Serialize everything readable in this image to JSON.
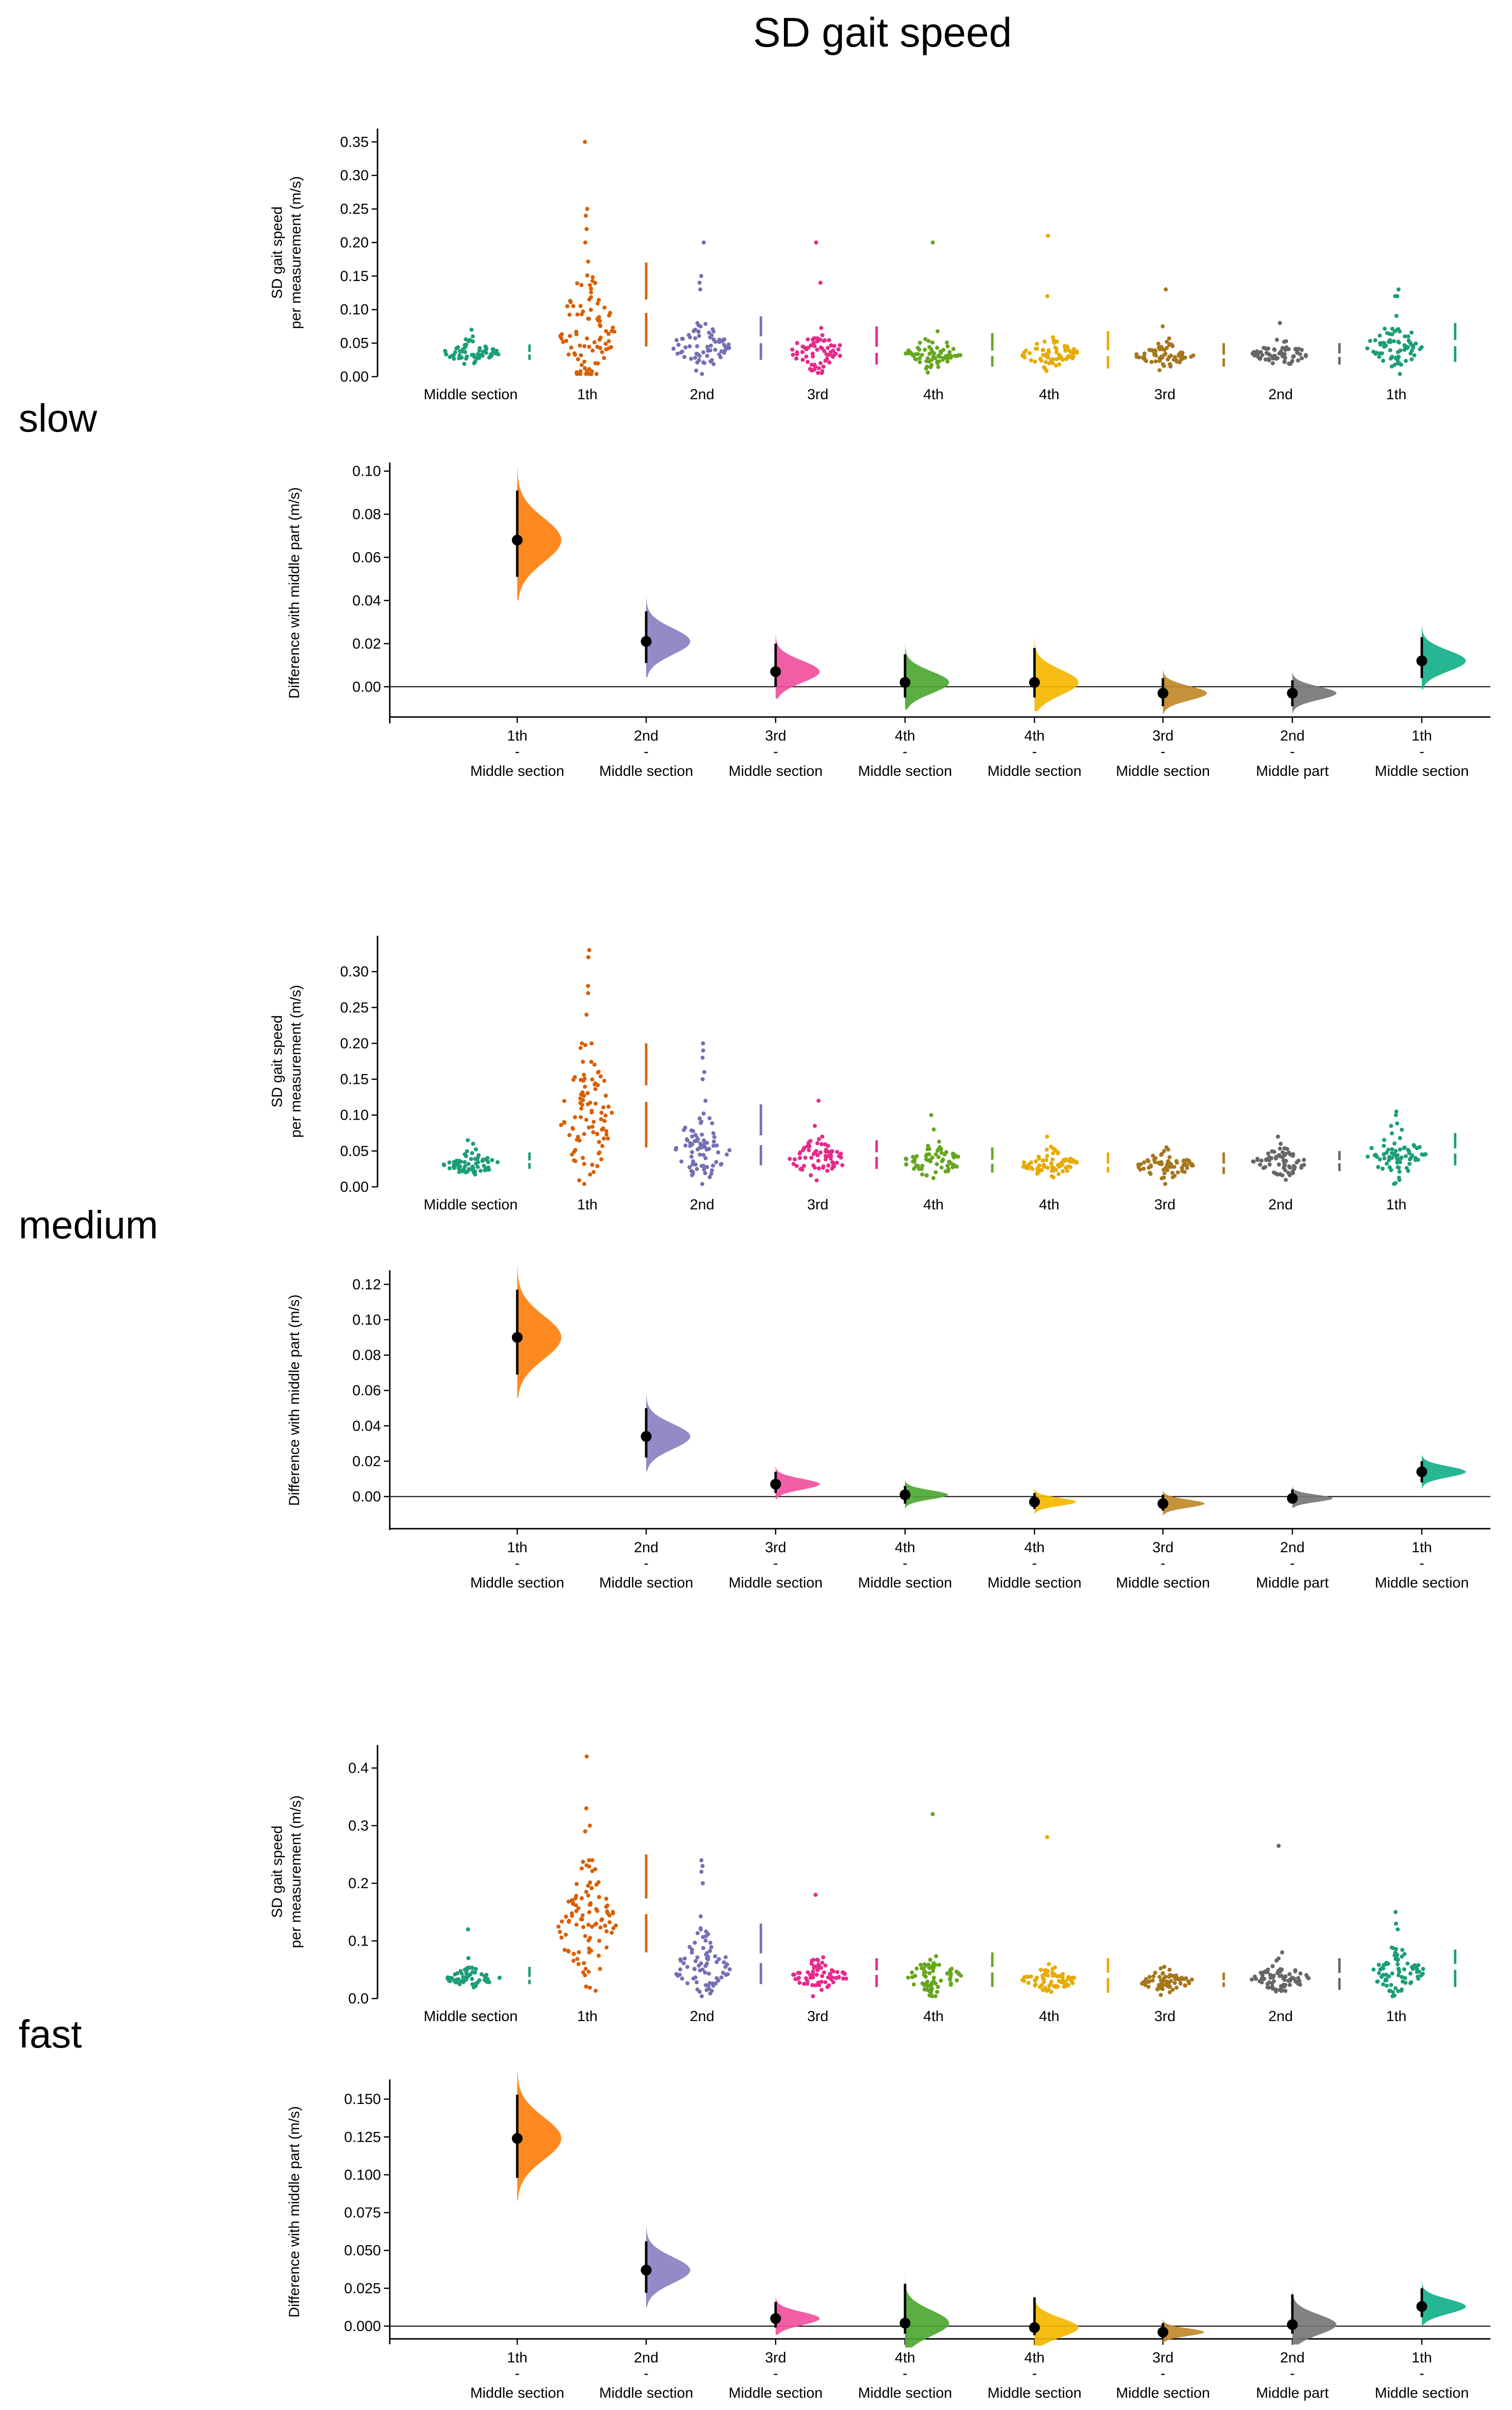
{
  "title": "SD gait speed",
  "colors": {
    "middle": "#1b9e77",
    "c1": "#d95f02",
    "c2": "#7570b3",
    "c3": "#e7298a",
    "c4": "#66a61e",
    "c4b": "#e6ab02",
    "c3b": "#a6761d",
    "c2b": "#666666",
    "c1b": "#1b9e77",
    "delta_colors": [
      "#ff7f0e",
      "#8c7fc1",
      "#f0509e",
      "#4da832",
      "#f5b800",
      "#c0882a",
      "#777777",
      "#14b08a"
    ]
  },
  "chart_data": [
    {
      "type": "scatter",
      "panel": "slow-raw",
      "group_label": "slow",
      "ylabel_line1": "SD gait speed",
      "ylabel_line2": "per measurement (m/s)",
      "ylim": [
        0,
        0.37
      ],
      "yticks": [
        "0.00",
        "0.05",
        "0.10",
        "0.15",
        "0.20",
        "0.25",
        "0.30",
        "0.35"
      ],
      "categories": [
        "Middle section",
        "1th",
        "2nd",
        "3rd",
        "4th",
        "4th",
        "3rd",
        "2nd",
        "1th"
      ],
      "series": [
        {
          "center": 0.035,
          "spread": 0.008,
          "count": 60,
          "max": 0.08,
          "outliers": [
            0.06,
            0.07
          ],
          "bar": [
            0.025,
            0.035,
            0.048
          ]
        },
        {
          "center": 0.07,
          "spread": 0.045,
          "count": 90,
          "max": 0.18,
          "outliers": [
            0.35,
            0.25,
            0.24,
            0.22,
            0.2
          ],
          "bar": [
            0.045,
            0.105,
            0.17
          ]
        },
        {
          "center": 0.045,
          "spread": 0.018,
          "count": 70,
          "max": 0.1,
          "outliers": [
            0.2,
            0.15,
            0.14,
            0.13
          ],
          "bar": [
            0.025,
            0.055,
            0.09
          ]
        },
        {
          "center": 0.038,
          "spread": 0.014,
          "count": 65,
          "max": 0.08,
          "outliers": [
            0.2,
            0.14
          ],
          "bar": [
            0.018,
            0.04,
            0.075
          ]
        },
        {
          "center": 0.035,
          "spread": 0.012,
          "count": 65,
          "max": 0.075,
          "outliers": [
            0.2
          ],
          "bar": [
            0.015,
            0.035,
            0.065
          ]
        },
        {
          "center": 0.035,
          "spread": 0.011,
          "count": 70,
          "max": 0.065,
          "outliers": [
            0.21,
            0.12
          ],
          "bar": [
            0.012,
            0.035,
            0.068
          ]
        },
        {
          "center": 0.032,
          "spread": 0.009,
          "count": 65,
          "max": 0.06,
          "outliers": [
            0.13,
            0.075
          ],
          "bar": [
            0.015,
            0.03,
            0.05
          ]
        },
        {
          "center": 0.033,
          "spread": 0.009,
          "count": 65,
          "max": 0.06,
          "outliers": [
            0.08
          ],
          "bar": [
            0.018,
            0.032,
            0.05
          ]
        },
        {
          "center": 0.045,
          "spread": 0.018,
          "count": 70,
          "max": 0.1,
          "outliers": [
            0.13,
            0.12,
            0.12
          ],
          "bar": [
            0.022,
            0.05,
            0.08
          ]
        }
      ]
    },
    {
      "type": "scatter",
      "panel": "slow-delta",
      "ylabel": "Difference with middle part (m/s)",
      "ylim": [
        -0.017,
        0.104
      ],
      "yticks": [
        "0.00",
        "0.02",
        "0.04",
        "0.06",
        "0.08",
        "0.10"
      ],
      "ytick_values": [
        0,
        0.02,
        0.04,
        0.06,
        0.08,
        0.1
      ],
      "x_top": [
        "1th",
        "2nd",
        "3rd",
        "4th",
        "4th",
        "3rd",
        "2nd",
        "1th"
      ],
      "x_sep": [
        "-",
        "-",
        "-",
        "-",
        "-",
        "-",
        "-",
        "-"
      ],
      "x_bottom": [
        "Middle section",
        "Middle section",
        "Middle section",
        "Middle section",
        "Middle section",
        "Middle section",
        "Middle part",
        "Middle section"
      ],
      "means": [
        0.068,
        0.021,
        0.007,
        0.002,
        0.002,
        -0.003,
        -0.003,
        0.012
      ],
      "ci_low": [
        0.051,
        0.011,
        0.0,
        -0.005,
        -0.005,
        -0.009,
        -0.009,
        0.004
      ],
      "ci_high": [
        0.091,
        0.035,
        0.02,
        0.015,
        0.018,
        0.004,
        0.003,
        0.023
      ]
    },
    {
      "type": "scatter",
      "panel": "medium-raw",
      "group_label": "medium",
      "ylabel_line1": "SD gait speed",
      "ylabel_line2": "per measurement (m/s)",
      "ylim": [
        0,
        0.35
      ],
      "yticks": [
        "0.00",
        "0.05",
        "0.10",
        "0.15",
        "0.20",
        "0.25",
        "0.30"
      ],
      "categories": [
        "Middle section",
        "1th",
        "2nd",
        "3rd",
        "4th",
        "4th",
        "3rd",
        "2nd",
        "1th"
      ],
      "series": [
        {
          "center": 0.032,
          "spread": 0.008,
          "count": 60,
          "max": 0.07,
          "outliers": [
            0.065,
            0.06
          ],
          "bar": [
            0.025,
            0.035,
            0.048
          ]
        },
        {
          "center": 0.1,
          "spread": 0.05,
          "count": 90,
          "max": 0.2,
          "outliers": [
            0.33,
            0.32,
            0.28,
            0.27,
            0.24
          ],
          "bar": [
            0.055,
            0.13,
            0.2
          ]
        },
        {
          "center": 0.055,
          "spread": 0.025,
          "count": 75,
          "max": 0.12,
          "outliers": [
            0.2,
            0.19,
            0.18,
            0.16,
            0.15
          ],
          "bar": [
            0.03,
            0.065,
            0.115
          ]
        },
        {
          "center": 0.038,
          "spread": 0.014,
          "count": 65,
          "max": 0.07,
          "outliers": [
            0.12,
            0.085
          ],
          "bar": [
            0.025,
            0.045,
            0.065
          ]
        },
        {
          "center": 0.035,
          "spread": 0.012,
          "count": 65,
          "max": 0.07,
          "outliers": [
            0.1,
            0.08
          ],
          "bar": [
            0.02,
            0.035,
            0.055
          ]
        },
        {
          "center": 0.032,
          "spread": 0.01,
          "count": 70,
          "max": 0.06,
          "outliers": [
            0.07
          ],
          "bar": [
            0.02,
            0.03,
            0.048
          ]
        },
        {
          "center": 0.03,
          "spread": 0.01,
          "count": 65,
          "max": 0.06,
          "outliers": [
            0.055
          ],
          "bar": [
            0.018,
            0.03,
            0.048
          ]
        },
        {
          "center": 0.033,
          "spread": 0.01,
          "count": 65,
          "max": 0.06,
          "outliers": [
            0.07
          ],
          "bar": [
            0.022,
            0.035,
            0.05
          ]
        },
        {
          "center": 0.045,
          "spread": 0.017,
          "count": 70,
          "max": 0.09,
          "outliers": [
            0.105,
            0.1
          ],
          "bar": [
            0.03,
            0.05,
            0.075
          ]
        }
      ]
    },
    {
      "type": "scatter",
      "panel": "medium-delta",
      "ylabel": "Difference with middle part (m/s)",
      "ylim": [
        -0.019,
        0.128
      ],
      "yticks": [
        "0.00",
        "0.02",
        "0.04",
        "0.06",
        "0.08",
        "0.10",
        "0.12"
      ],
      "ytick_values": [
        0,
        0.02,
        0.04,
        0.06,
        0.08,
        0.1,
        0.12
      ],
      "x_top": [
        "1th",
        "2nd",
        "3rd",
        "4th",
        "4th",
        "3rd",
        "2nd",
        "1th"
      ],
      "x_sep": [
        "-",
        "-",
        "-",
        "-",
        "-",
        "-",
        "-",
        "-"
      ],
      "x_bottom": [
        "Middle section",
        "Middle section",
        "Middle section",
        "Middle section",
        "Middle section",
        "Middle section",
        "Middle part",
        "Middle section"
      ],
      "means": [
        0.09,
        0.034,
        0.007,
        0.001,
        -0.003,
        -0.004,
        -0.001,
        0.014
      ],
      "ci_low": [
        0.069,
        0.022,
        0.002,
        -0.004,
        -0.007,
        -0.008,
        -0.004,
        0.008
      ],
      "ci_high": [
        0.117,
        0.05,
        0.014,
        0.006,
        0.002,
        0.001,
        0.004,
        0.02
      ]
    },
    {
      "type": "scatter",
      "panel": "fast-raw",
      "group_label": "fast",
      "ylabel_line1": "SD gait speed",
      "ylabel_line2": "per measurement (m/s)",
      "ylim": [
        0,
        0.44
      ],
      "yticks": [
        "0.0",
        "0.1",
        "0.2",
        "0.3",
        "0.4"
      ],
      "categories": [
        "Middle section",
        "1th",
        "2nd",
        "3rd",
        "4th",
        "4th",
        "3rd",
        "2nd",
        "1th"
      ],
      "series": [
        {
          "center": 0.035,
          "spread": 0.008,
          "count": 60,
          "max": 0.07,
          "outliers": [
            0.12,
            0.07
          ],
          "bar": [
            0.025,
            0.035,
            0.055
          ]
        },
        {
          "center": 0.12,
          "spread": 0.06,
          "count": 95,
          "max": 0.24,
          "outliers": [
            0.42,
            0.33,
            0.3,
            0.29
          ],
          "bar": [
            0.08,
            0.16,
            0.25
          ]
        },
        {
          "center": 0.055,
          "spread": 0.028,
          "count": 75,
          "max": 0.15,
          "outliers": [
            0.24,
            0.23,
            0.22,
            0.2
          ],
          "bar": [
            0.025,
            0.07,
            0.13
          ]
        },
        {
          "center": 0.038,
          "spread": 0.014,
          "count": 65,
          "max": 0.08,
          "outliers": [
            0.18
          ],
          "bar": [
            0.02,
            0.045,
            0.07
          ]
        },
        {
          "center": 0.038,
          "spread": 0.015,
          "count": 70,
          "max": 0.09,
          "outliers": [
            0.32
          ],
          "bar": [
            0.02,
            0.05,
            0.08
          ]
        },
        {
          "center": 0.032,
          "spread": 0.01,
          "count": 70,
          "max": 0.06,
          "outliers": [
            0.28
          ],
          "bar": [
            0.01,
            0.04,
            0.07
          ]
        },
        {
          "center": 0.03,
          "spread": 0.009,
          "count": 65,
          "max": 0.055,
          "outliers": [
            0.055
          ],
          "bar": [
            0.02,
            0.03,
            0.045
          ]
        },
        {
          "center": 0.035,
          "spread": 0.012,
          "count": 70,
          "max": 0.08,
          "outliers": [
            0.265,
            0.08
          ],
          "bar": [
            0.015,
            0.04,
            0.07
          ]
        },
        {
          "center": 0.045,
          "spread": 0.018,
          "count": 75,
          "max": 0.1,
          "outliers": [
            0.15,
            0.13,
            0.12
          ],
          "bar": [
            0.02,
            0.055,
            0.085
          ]
        }
      ]
    },
    {
      "type": "scatter",
      "panel": "fast-delta",
      "ylabel": "Difference with middle part (m/s)",
      "ylim": [
        -0.012,
        0.163
      ],
      "yticks": [
        "0.000",
        "0.025",
        "0.050",
        "0.075",
        "0.100",
        "0.125",
        "0.150"
      ],
      "ytick_values": [
        0,
        0.025,
        0.05,
        0.075,
        0.1,
        0.125,
        0.15
      ],
      "x_top": [
        "1th",
        "2nd",
        "3rd",
        "4th",
        "4th",
        "3rd",
        "2nd",
        "1th"
      ],
      "x_sep": [
        "-",
        "-",
        "-",
        "-",
        "-",
        "-",
        "-",
        "-"
      ],
      "x_bottom": [
        "Middle section",
        "Middle section",
        "Middle section",
        "Middle section",
        "Middle section",
        "Middle section",
        "Middle part",
        "Middle section"
      ],
      "means": [
        0.124,
        0.037,
        0.005,
        0.002,
        -0.001,
        -0.004,
        0.001,
        0.013
      ],
      "ci_low": [
        0.098,
        0.022,
        -0.001,
        -0.005,
        -0.006,
        -0.008,
        -0.005,
        0.006
      ],
      "ci_high": [
        0.153,
        0.056,
        0.016,
        0.028,
        0.019,
        0.002,
        0.021,
        0.025
      ]
    }
  ]
}
